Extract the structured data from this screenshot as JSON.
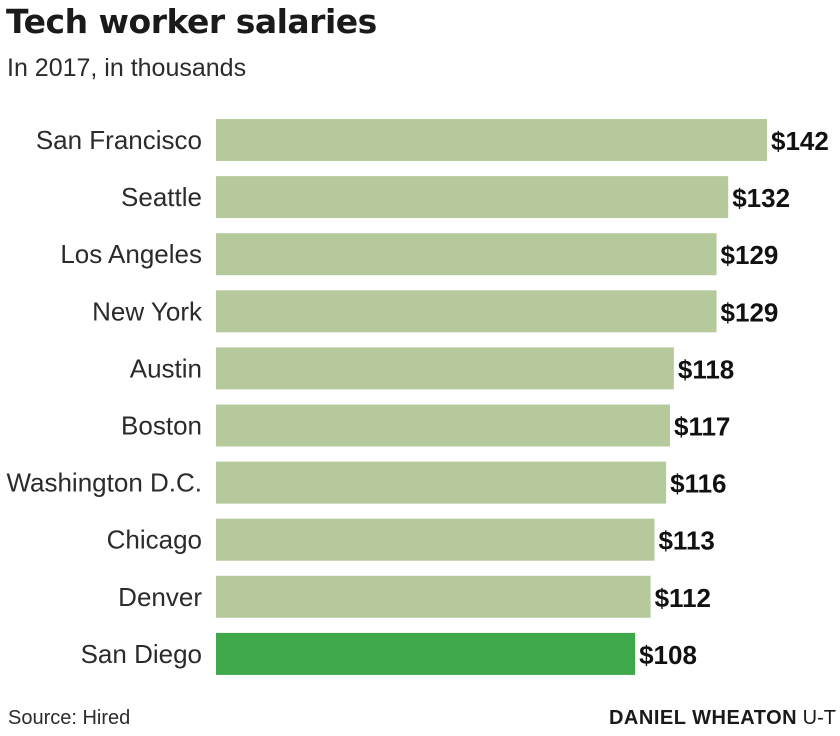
{
  "header": {
    "title": "Tech worker salaries",
    "subtitle": "In 2017, in thousands"
  },
  "footer": {
    "source": "Source: Hired",
    "credit_name": "DANIEL WHEATON",
    "credit_org": "U-T"
  },
  "colors": {
    "bar_default": "#b5c99c",
    "bar_highlight": "#3ea84a"
  },
  "chart_data": {
    "type": "bar",
    "orientation": "horizontal",
    "title": "Tech worker salaries",
    "subtitle": "In 2017, in thousands",
    "categories": [
      "San Francisco",
      "Seattle",
      "Los Angeles",
      "New York",
      "Austin",
      "Boston",
      "Washington D.C.",
      "Chicago",
      "Denver",
      "San Diego"
    ],
    "values": [
      142,
      132,
      129,
      129,
      118,
      117,
      116,
      113,
      112,
      108
    ],
    "value_labels": [
      "$142",
      "$132",
      "$129",
      "$129",
      "$118",
      "$117",
      "$116",
      "$113",
      "$112",
      "$108"
    ],
    "highlight": "San Diego",
    "xlim": [
      0,
      142
    ],
    "grid": false,
    "legend": "none"
  }
}
